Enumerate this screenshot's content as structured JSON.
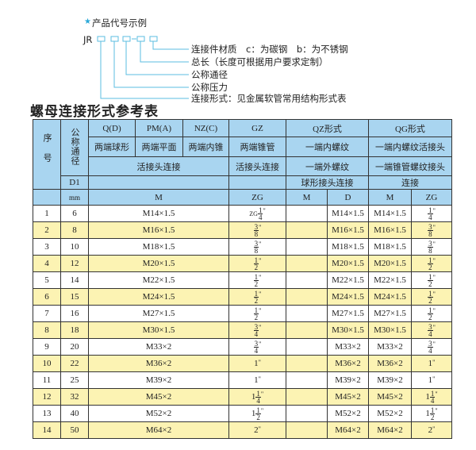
{
  "diagram": {
    "star_icon": "star-icon",
    "heading": "产品代号示例",
    "code_prefix": "JR",
    "labels": [
      "连接件材质　c：为碳钢　b：为不锈钢",
      "总长（长度可根据用户要求定制）",
      "公称通径",
      "公称压力",
      "连接形式：见金属软管常用结构形式表"
    ],
    "accent": "#2aa8d8"
  },
  "title": "螺母连接形式参考表",
  "table": {
    "colors": {
      "header": "#a9d5f0",
      "stripe": "#fcf3b3"
    },
    "h": {
      "seq": "序号",
      "dn": "公称通径",
      "d1": "D1",
      "mm": "mm",
      "q": "Q(D)",
      "pm": "PM(A)",
      "nz": "NZ(C)",
      "gz": "GZ",
      "qz": "QZ形式",
      "qg": "QG形式",
      "q2": "两端球形",
      "pm2": "两端平面",
      "nz2": "两端内锥",
      "gz2": "两端锥管",
      "qz2": "一端内螺纹",
      "qg2": "一端内螺纹活接头",
      "qpn3": "活接头连接",
      "gz3": "活接头连接",
      "qz3": "一端外螺纹",
      "qg3": "一端锥管螺纹接头",
      "qz4": "球形接头连接",
      "qg4": "连接",
      "m": "M",
      "zg": "ZG",
      "qzm": "M",
      "qzd": "D",
      "qgm": "M",
      "qgzg": "ZG"
    },
    "rows": [
      {
        "no": "1",
        "dn": "6",
        "m": "M14×1.5",
        "zg": {
          "pre": "ZG",
          "w": "",
          "n": "1",
          "d": "4"
        },
        "qzd": "M14×1.5",
        "qgm": "M14×1.5"
      },
      {
        "no": "2",
        "dn": "8",
        "m": "M16×1.5",
        "zg": {
          "pre": "",
          "w": "",
          "n": "3",
          "d": "8"
        },
        "qzd": "M16×1.5",
        "qgm": "M16×1.5"
      },
      {
        "no": "3",
        "dn": "10",
        "m": "M18×1.5",
        "zg": {
          "pre": "",
          "w": "",
          "n": "3",
          "d": "8"
        },
        "qzd": "M18×1.5",
        "qgm": "M18×1.5"
      },
      {
        "no": "4",
        "dn": "12",
        "m": "M20×1.5",
        "zg": {
          "pre": "",
          "w": "",
          "n": "1",
          "d": "2"
        },
        "qzd": "M20×1.5",
        "qgm": "M20×1.5"
      },
      {
        "no": "5",
        "dn": "14",
        "m": "M22×1.5",
        "zg": {
          "pre": "",
          "w": "",
          "n": "1",
          "d": "2"
        },
        "qzd": "M22×1.5",
        "qgm": "M22×1.5"
      },
      {
        "no": "6",
        "dn": "15",
        "m": "M24×1.5",
        "zg": {
          "pre": "",
          "w": "",
          "n": "1",
          "d": "2"
        },
        "qzd": "M24×1.5",
        "qgm": "M24×1.5"
      },
      {
        "no": "7",
        "dn": "16",
        "m": "M27×1.5",
        "zg": {
          "pre": "",
          "w": "",
          "n": "1",
          "d": "2"
        },
        "qzd": "M27×1.5",
        "qgm": "M27×1.5"
      },
      {
        "no": "8",
        "dn": "18",
        "m": "M30×1.5",
        "zg": {
          "pre": "",
          "w": "",
          "n": "3",
          "d": "4"
        },
        "qzd": "M30×1.5",
        "qgm": "M30×1.5"
      },
      {
        "no": "9",
        "dn": "20",
        "m": "M33×2",
        "zg": {
          "pre": "",
          "w": "",
          "n": "3",
          "d": "4"
        },
        "qzd": "M33×2",
        "qgm": "M33×2"
      },
      {
        "no": "10",
        "dn": "22",
        "m": "M36×2",
        "zg": {
          "pre": "",
          "w": "1",
          "n": "",
          "d": ""
        },
        "qzd": "M36×2",
        "qgm": "M36×2"
      },
      {
        "no": "11",
        "dn": "25",
        "m": "M39×2",
        "zg": {
          "pre": "",
          "w": "1",
          "n": "",
          "d": ""
        },
        "qzd": "M39×2",
        "qgm": "M39×2"
      },
      {
        "no": "12",
        "dn": "32",
        "m": "M45×2",
        "zg": {
          "pre": "",
          "w": "1",
          "n": "1",
          "d": "4"
        },
        "qzd": "M45×2",
        "qgm": "M45×2"
      },
      {
        "no": "13",
        "dn": "40",
        "m": "M52×2",
        "zg": {
          "pre": "",
          "w": "1",
          "n": "1",
          "d": "2"
        },
        "qzd": "M52×2",
        "qgm": "M52×2"
      },
      {
        "no": "14",
        "dn": "50",
        "m": "M64×2",
        "zg": {
          "pre": "",
          "w": "2",
          "n": "",
          "d": ""
        },
        "qzd": "M64×2",
        "qgm": "M64×2"
      }
    ]
  }
}
